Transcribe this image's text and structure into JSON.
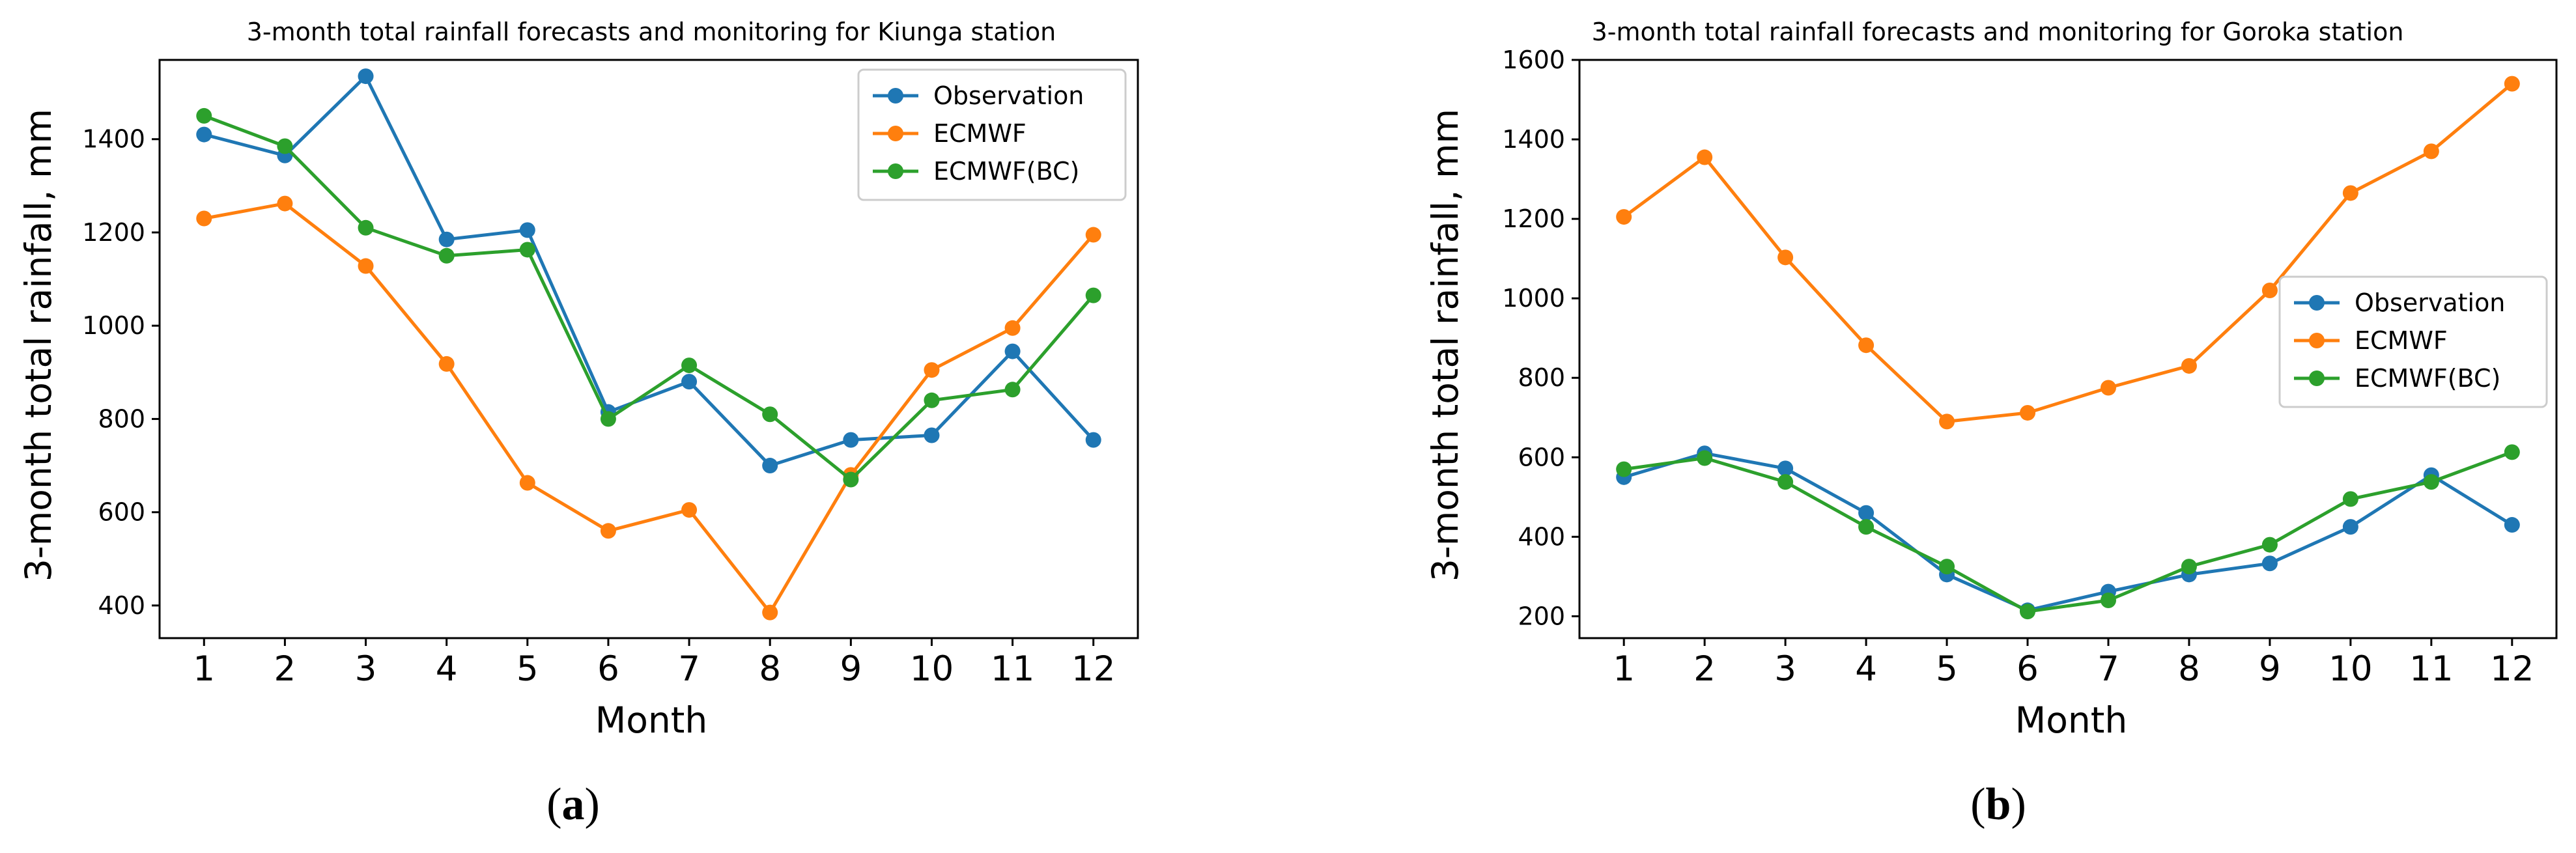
{
  "colors": {
    "observation": "#1f77b4",
    "ecmwf": "#ff7f0e",
    "ecmwf_bc": "#2ca02c"
  },
  "chart_data": [
    {
      "type": "line",
      "panel": "a",
      "title": "3-month total rainfall forecasts and monitoring for Kiunga station",
      "xlabel": "Month",
      "ylabel": "3-month total rainfall, mm",
      "x": [
        1,
        2,
        3,
        4,
        5,
        6,
        7,
        8,
        9,
        10,
        11,
        12
      ],
      "x_tick_labels": [
        "1",
        "2",
        "3",
        "4",
        "5",
        "6",
        "7",
        "8",
        "9",
        "10",
        "11",
        "12"
      ],
      "xlim": [
        0.45,
        12.55
      ],
      "ylim": [
        330,
        1570
      ],
      "y_ticks": [
        400,
        600,
        800,
        1000,
        1200,
        1400
      ],
      "y_tick_labels": [
        "400",
        "600",
        "800",
        "1000",
        "1200",
        "1400"
      ],
      "legend_position": "top-right",
      "series": [
        {
          "name": "Observation",
          "color_key": "observation",
          "values": [
            1410,
            1365,
            1535,
            1185,
            1205,
            815,
            880,
            700,
            755,
            765,
            945,
            755
          ]
        },
        {
          "name": "ECMWF",
          "color_key": "ecmwf",
          "values": [
            1230,
            1262,
            1128,
            918,
            663,
            560,
            605,
            385,
            680,
            905,
            995,
            1195
          ]
        },
        {
          "name": "ECMWF(BC)",
          "color_key": "ecmwf_bc",
          "values": [
            1450,
            1385,
            1210,
            1150,
            1163,
            800,
            915,
            810,
            670,
            840,
            863,
            1065
          ]
        }
      ]
    },
    {
      "type": "line",
      "panel": "b",
      "title": "3-month total rainfall forecasts and monitoring for Goroka station",
      "xlabel": "Month",
      "ylabel": "3-month total rainfall, mm",
      "x": [
        1,
        2,
        3,
        4,
        5,
        6,
        7,
        8,
        9,
        10,
        11,
        12
      ],
      "x_tick_labels": [
        "1",
        "2",
        "3",
        "4",
        "5",
        "6",
        "7",
        "8",
        "9",
        "10",
        "11",
        "12"
      ],
      "xlim": [
        0.45,
        12.55
      ],
      "ylim": [
        145,
        1600
      ],
      "y_ticks": [
        200,
        400,
        600,
        800,
        1000,
        1200,
        1400,
        1600
      ],
      "y_tick_labels": [
        "200",
        "400",
        "600",
        "800",
        "1000",
        "1200",
        "1400",
        "1600"
      ],
      "legend_position": "center-right",
      "series": [
        {
          "name": "Observation",
          "color_key": "observation",
          "values": [
            550,
            610,
            572,
            460,
            305,
            215,
            262,
            305,
            333,
            425,
            555,
            430
          ]
        },
        {
          "name": "ECMWF",
          "color_key": "ecmwf",
          "values": [
            1205,
            1355,
            1103,
            882,
            690,
            712,
            775,
            830,
            1020,
            1265,
            1370,
            1540
          ]
        },
        {
          "name": "ECMWF(BC)",
          "color_key": "ecmwf_bc",
          "values": [
            570,
            598,
            538,
            425,
            325,
            212,
            240,
            325,
            380,
            495,
            538,
            613
          ]
        }
      ]
    }
  ],
  "panel_labels": [
    {
      "open": "(",
      "letter": "a",
      "close": ")"
    },
    {
      "open": "(",
      "letter": "b",
      "close": ")"
    }
  ]
}
